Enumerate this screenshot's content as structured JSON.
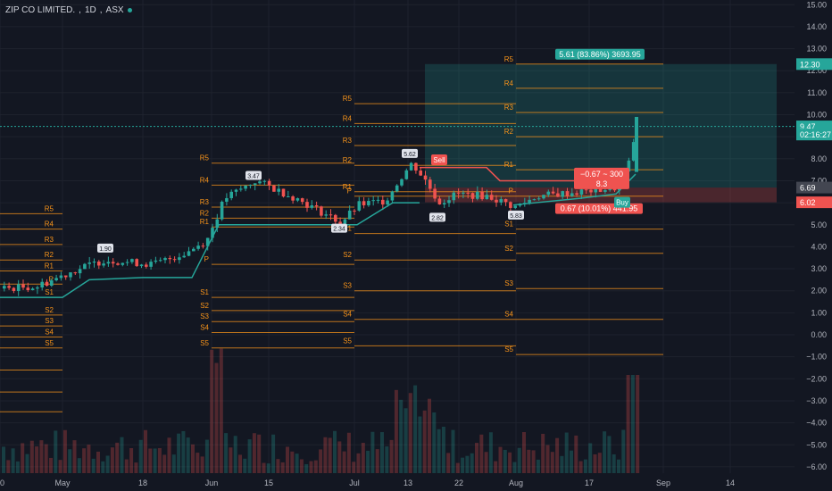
{
  "legend": {
    "symbol": "ZIP CO LIMITED.",
    "interval": "1D",
    "exchange": "ASX"
  },
  "chart_data": {
    "type": "candlestick",
    "y_axis_labels": [
      "15.00",
      "14.00",
      "13.00",
      "12.00",
      "11.00",
      "10.00",
      "9.00",
      "8.00",
      "7.00",
      "6.00",
      "5.00",
      "4.00",
      "3.00",
      "2.00",
      "1.00",
      "0.00",
      "−1.00",
      "−2.00",
      "−3.00",
      "−4.00",
      "−5.00",
      "−6.00"
    ],
    "x_axis_labels": [
      "0",
      "May",
      "18",
      "Jun",
      "15",
      "Jul",
      "13",
      "22",
      "Aug",
      "17",
      "Sep",
      "14"
    ],
    "price_badges": [
      {
        "text": "12.30",
        "value": 12.3,
        "color": "#26a69a"
      },
      {
        "text": "9.47",
        "value": 9.47,
        "color": "#26a69a"
      },
      {
        "text": "02:16:27",
        "value": 9.1,
        "color": "#26a69a"
      },
      {
        "text": "6.69",
        "value": 6.69,
        "color": "#434651"
      },
      {
        "text": "6.02",
        "value": 6.02,
        "color": "#ef5350"
      }
    ],
    "position_labels": {
      "target": "5.61 (83.86%) 3693.95",
      "risk": "0.67 (10.01%) 441.95",
      "qty_line1": "−0.67 ~ 300",
      "qty_line2": "8.3"
    },
    "signals": {
      "sell": "Sell",
      "buy": "Buy"
    },
    "peak_labels": [
      "1.90",
      "3.47",
      "5.62",
      "2.34",
      "2.82",
      "5.83"
    ],
    "pivot_labels": [
      "R5",
      "R4",
      "R3",
      "R2",
      "R1",
      "P",
      "S1",
      "S2",
      "S3",
      "S4",
      "S5"
    ],
    "colors": {
      "up": "#26a69a",
      "down": "#ef5350",
      "pivot": "#f7931a"
    }
  }
}
